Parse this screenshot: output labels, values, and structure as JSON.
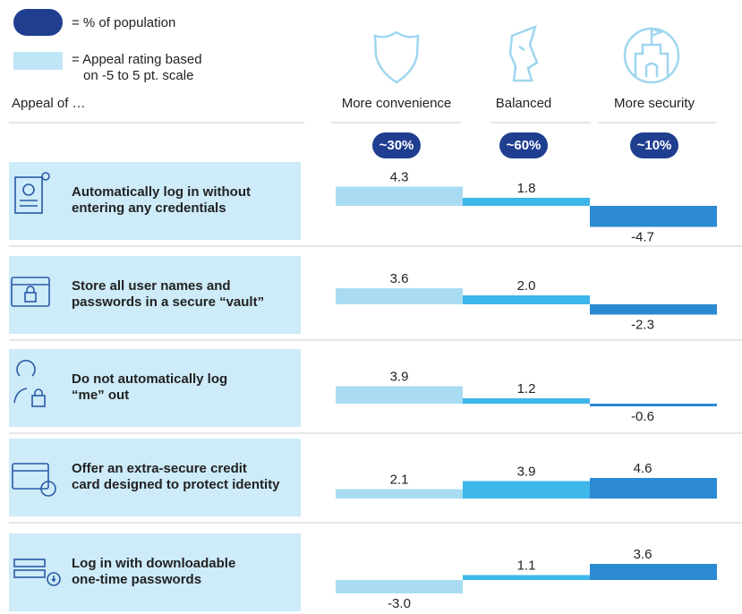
{
  "chart_data": {
    "type": "bar",
    "legend": {
      "population": "= % of population",
      "appeal": [
        "= Appeal rating based",
        "on -5 to 5 pt. scale"
      ]
    },
    "row_header": "Appeal of …",
    "categories": [
      "More convenience",
      "Balanced",
      "More security"
    ],
    "population_labels": [
      "~30%",
      "~60%",
      "~10%"
    ],
    "colors": [
      "#a9dcf3",
      "#3db6ea",
      "#2b8ad2"
    ],
    "ylim": [
      -5,
      5
    ],
    "rows": [
      {
        "label": [
          "Automatically log in without",
          "entering any credentials"
        ],
        "values": [
          4.3,
          1.8,
          -4.7
        ],
        "value_labels": [
          "4.3",
          "1.8",
          "-4.7"
        ]
      },
      {
        "label": [
          "Store all user names and",
          "passwords in a secure “vault”"
        ],
        "values": [
          3.6,
          2.0,
          -2.3
        ],
        "value_labels": [
          "3.6",
          "2.0",
          "-2.3"
        ]
      },
      {
        "label": [
          "Do not automatically log",
          "“me” out"
        ],
        "values": [
          3.9,
          1.2,
          -0.6
        ],
        "value_labels": [
          "3.9",
          "1.2",
          "-0.6"
        ]
      },
      {
        "label": [
          "Offer an extra-secure credit",
          "card designed to protect identity"
        ],
        "values": [
          2.1,
          3.9,
          4.6
        ],
        "value_labels": [
          "2.1",
          "3.9",
          "4.6"
        ]
      },
      {
        "label": [
          "Log in with downloadable",
          "one-time passwords"
        ],
        "values": [
          -3.0,
          1.1,
          3.6
        ],
        "value_labels": [
          "-3.0",
          "1.1",
          "3.6"
        ]
      }
    ]
  }
}
